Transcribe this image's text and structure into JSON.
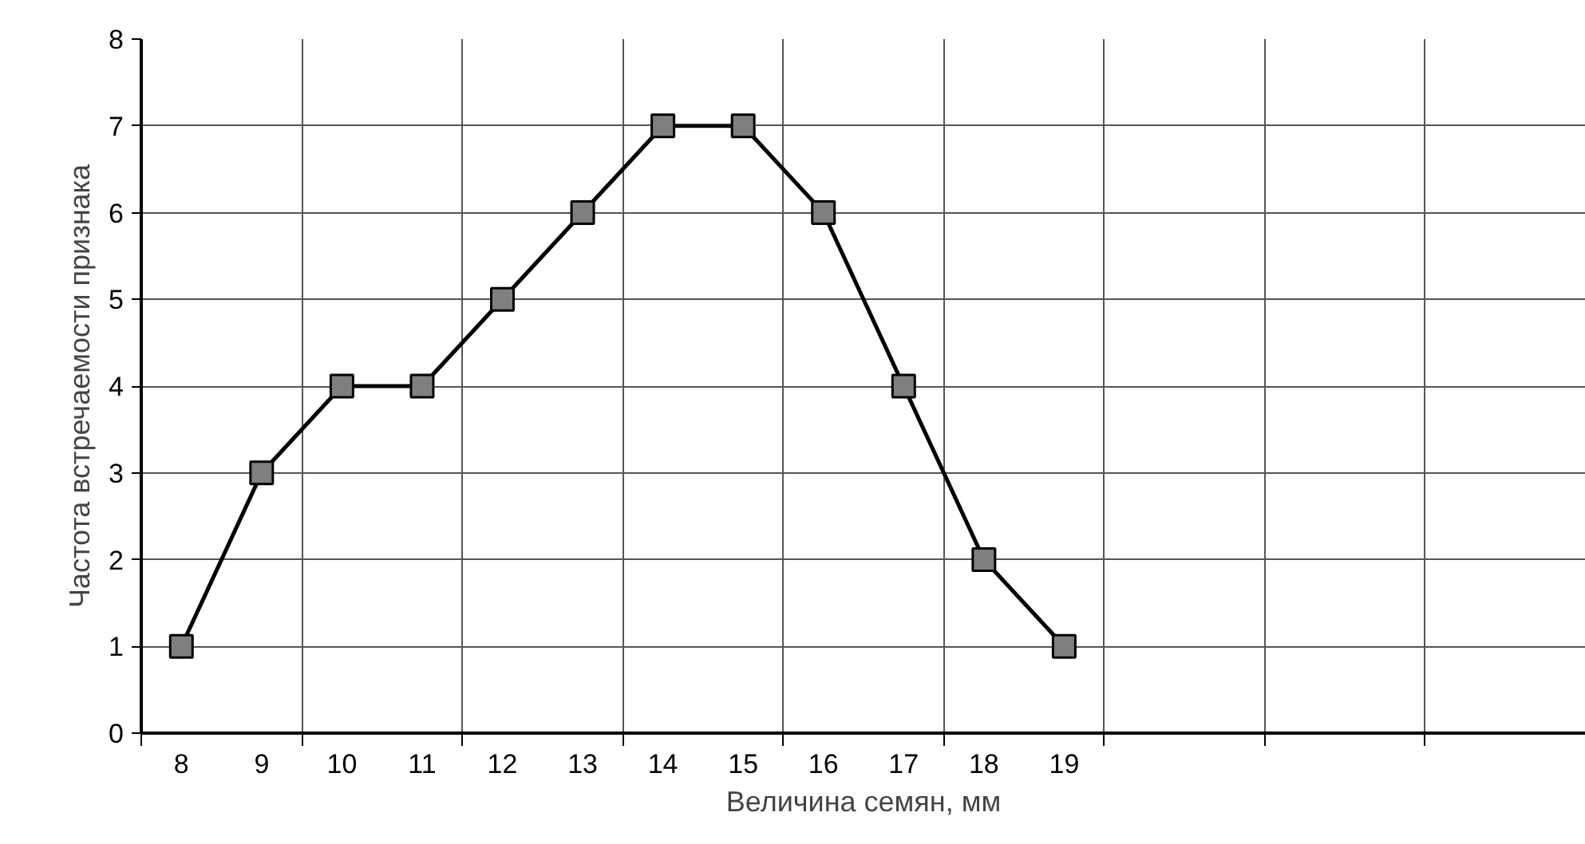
{
  "chart_data": {
    "type": "line",
    "xlabel": "Величина семян, мм",
    "ylabel": "Частота встречаемости признака",
    "categories": [
      "8",
      "9",
      "10",
      "11",
      "12",
      "13",
      "14",
      "15",
      "16",
      "17",
      "18",
      "19",
      null,
      null,
      null,
      null,
      null,
      null
    ],
    "series": [
      {
        "color": "#000000",
        "values": [
          1,
          3,
          4,
          4,
          5,
          6,
          7,
          7,
          6,
          4,
          2,
          1,
          null,
          null,
          null,
          null,
          null,
          null
        ]
      }
    ],
    "ylim": [
      0,
      8
    ],
    "yticks": [
      0,
      1,
      2,
      3,
      4,
      5,
      6,
      7,
      8
    ],
    "grid": true,
    "marker": "square",
    "line_style": "solid"
  }
}
